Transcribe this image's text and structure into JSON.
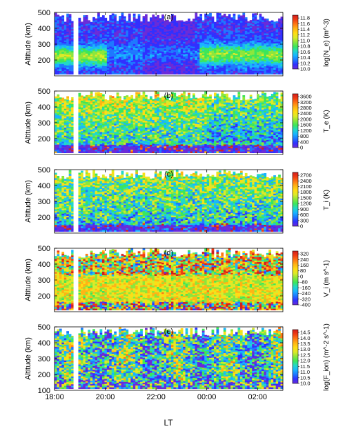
{
  "x_axis": {
    "label": "LT",
    "ticks": [
      "18:00",
      "20:00",
      "22:00",
      "00:00",
      "02:00"
    ],
    "tick_hours": [
      18,
      20,
      22,
      24,
      26
    ],
    "range_hours": [
      18,
      27
    ]
  },
  "y_axis": {
    "label": "Altitude (km)",
    "range_km": [
      100,
      500
    ],
    "ticks": [
      "100",
      "200",
      "300",
      "400",
      "500"
    ],
    "tick_values": [
      100,
      200,
      300,
      400,
      500
    ]
  },
  "chart_data": [
    {
      "type": "heatmap",
      "panel": "(a)",
      "parameter": "Ne",
      "colorbar_label": "log(N_e) (m^-3)",
      "colorbar_ticks": [
        "10.0",
        "10.2",
        "10.4",
        "10.6",
        "10.8",
        "11.0",
        "11.2",
        "11.4",
        "11.6",
        "11.8"
      ],
      "range": [
        10.0,
        11.9
      ],
      "data_gap_hours": [
        18.75,
        18.9
      ],
      "ylabel": "Altitude (km)",
      "ylim": [
        100,
        500
      ]
    },
    {
      "type": "heatmap",
      "panel": "(b)",
      "parameter": "Te",
      "colorbar_label": "T_e (K)",
      "colorbar_ticks": [
        "0",
        "400",
        "800",
        "1200",
        "1600",
        "2000",
        "2400",
        "2800",
        "3200",
        "3600"
      ],
      "range": [
        0,
        3800
      ],
      "data_gap_hours": [
        18.75,
        18.9
      ],
      "ylabel": "Altitude (km)",
      "ylim": [
        100,
        500
      ]
    },
    {
      "type": "heatmap",
      "panel": "(c)",
      "parameter": "Ti",
      "colorbar_label": "T_i (K)",
      "colorbar_ticks": [
        "0",
        "300",
        "600",
        "900",
        "1200",
        "1500",
        "1800",
        "2100",
        "2400",
        "2700"
      ],
      "range": [
        0,
        2850
      ],
      "data_gap_hours": [
        18.75,
        18.9
      ],
      "ylabel": "Altitude (km)",
      "ylim": [
        100,
        500
      ]
    },
    {
      "type": "heatmap",
      "panel": "(d)",
      "parameter": "Vi",
      "colorbar_label": "V_i (m s^-1)",
      "colorbar_ticks": [
        "-400",
        "-320",
        "-240",
        "-160",
        "-80",
        "0",
        "80",
        "160",
        "240",
        "320"
      ],
      "range": [
        -400,
        360
      ],
      "data_gap_hours": [
        18.75,
        18.9
      ],
      "ylabel": "Altitude (km)",
      "ylim": [
        100,
        500
      ]
    },
    {
      "type": "heatmap",
      "panel": "(e)",
      "parameter": "Fion",
      "colorbar_label": "log(F_ion) (m^-2 s^-1)",
      "colorbar_ticks": [
        "10.0",
        "10.5",
        "11.0",
        "11.5",
        "12.0",
        "12.5",
        "13.0",
        "13.5",
        "14.0",
        "14.5"
      ],
      "range": [
        10.0,
        14.75
      ],
      "data_gap_hours": [
        18.75,
        18.9
      ],
      "ylabel": "Altitude (km)",
      "ylim": [
        100,
        500
      ]
    }
  ],
  "colors": {
    "colormap": [
      "#6a2bd8",
      "#3030ff",
      "#1e78ff",
      "#19b4ff",
      "#22d8c8",
      "#3ce65a",
      "#8ce63c",
      "#dcea28",
      "#ffdc14",
      "#ffb414",
      "#ff7814",
      "#f03c14",
      "#d21e1e"
    ],
    "gap": "#ffffff",
    "axis": "#000000"
  }
}
